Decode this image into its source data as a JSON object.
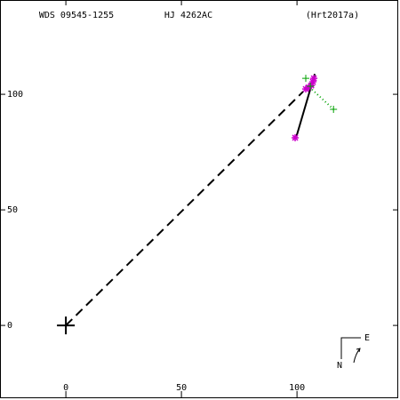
{
  "chart_data": {
    "type": "scatter",
    "header": [
      "WDS 09545-1255",
      "HJ 4262AC",
      "(Hrt2017a)"
    ],
    "compass": [
      "N",
      "E"
    ],
    "xlim": [
      -28.5,
      143.8
    ],
    "ylim": [
      -31.5,
      140.8
    ],
    "xticks": [
      0,
      50,
      100
    ],
    "yticks": [
      0,
      50,
      100
    ],
    "series": [
      {
        "color": "#000000",
        "line": "dashed",
        "x": [
          0,
          102.7
        ],
        "y": [
          0,
          101.2
        ]
      },
      {
        "color": "#000000",
        "line": "solid",
        "x": [
          99.6,
          107.7
        ],
        "y": [
          81.2,
          108.8
        ]
      },
      {
        "color": "#00a000",
        "line": "dotted",
        "x": [
          105.4,
          115.8
        ],
        "y": [
          103.1,
          93.5
        ]
      },
      {
        "color": "#cc00cc",
        "marker": "star",
        "x": [
          99.2,
          103.8,
          105.0,
          106.2,
          106.9,
          107.3
        ],
        "y": [
          81.2,
          102.3,
          103.0,
          103.8,
          105.4,
          106.9
        ]
      },
      {
        "color": "#00a000",
        "marker": "plus",
        "x": [
          103.8,
          115.8,
          105.8
        ],
        "y": [
          106.9,
          93.5,
          103.5
        ]
      },
      {
        "color": "#000000",
        "marker": "cross",
        "x": [
          0
        ],
        "y": [
          0
        ]
      }
    ]
  }
}
